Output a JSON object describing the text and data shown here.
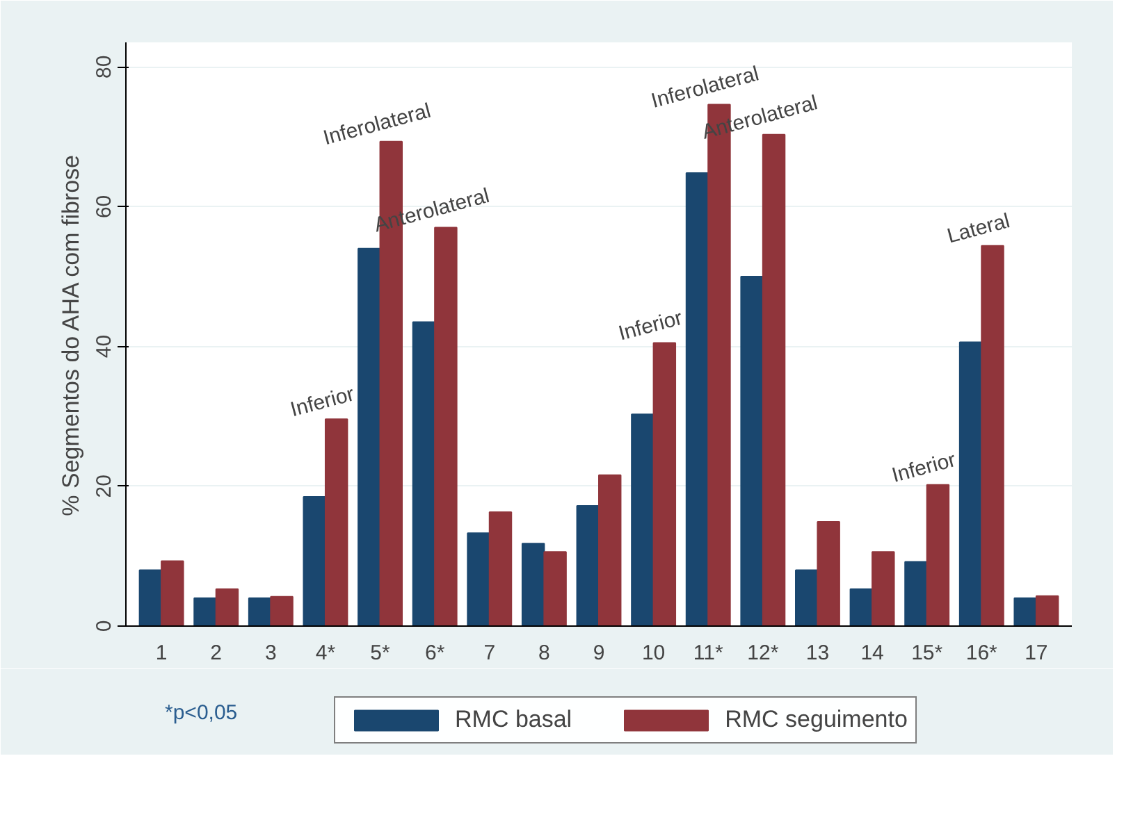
{
  "chart_data": {
    "type": "bar",
    "ylabel": "% Segmentos do AHA com fibrose",
    "categories": [
      "1",
      "2",
      "3",
      "4*",
      "5*",
      "6*",
      "7",
      "8",
      "9",
      "10",
      "11*",
      "12*",
      "13",
      "14",
      "15*",
      "16*",
      "17"
    ],
    "series": [
      {
        "name": "RMC basal",
        "color": "#1a476f",
        "values": [
          8,
          4,
          4,
          18.5,
          54,
          43.5,
          13.3,
          11.8,
          17.2,
          30.3,
          64.8,
          50,
          8,
          5.3,
          9.2,
          40.6,
          4
        ]
      },
      {
        "name": "RMC seguimento",
        "color": "#90353b",
        "values": [
          9.3,
          5.3,
          4.2,
          29.6,
          69.3,
          57,
          16.3,
          10.6,
          21.6,
          40.5,
          74.6,
          70.3,
          14.9,
          10.6,
          20.2,
          54.4,
          4.3
        ]
      }
    ],
    "ylim": [
      0,
      83.5
    ],
    "yticks": [
      0,
      20,
      40,
      60,
      80
    ],
    "grid": "y",
    "legend": "bottom",
    "annotations": [
      {
        "text": "Inferior",
        "x": "4*",
        "y": 29.6
      },
      {
        "text": "Inferolateral",
        "x": "5*",
        "y": 69.3
      },
      {
        "text": "Anterolateral",
        "x": "6*",
        "y": 57
      },
      {
        "text": "Inferior",
        "x": "10",
        "y": 40.5
      },
      {
        "text": "Inferolateral",
        "x": "11*",
        "y": 74.6
      },
      {
        "text": "Anterolateral",
        "x": "12*",
        "y": 70.3
      },
      {
        "text": "Inferior",
        "x": "15*",
        "y": 20.2
      },
      {
        "text": "Lateral",
        "x": "16*",
        "y": 54.4
      },
      "*p<0,05"
    ]
  }
}
